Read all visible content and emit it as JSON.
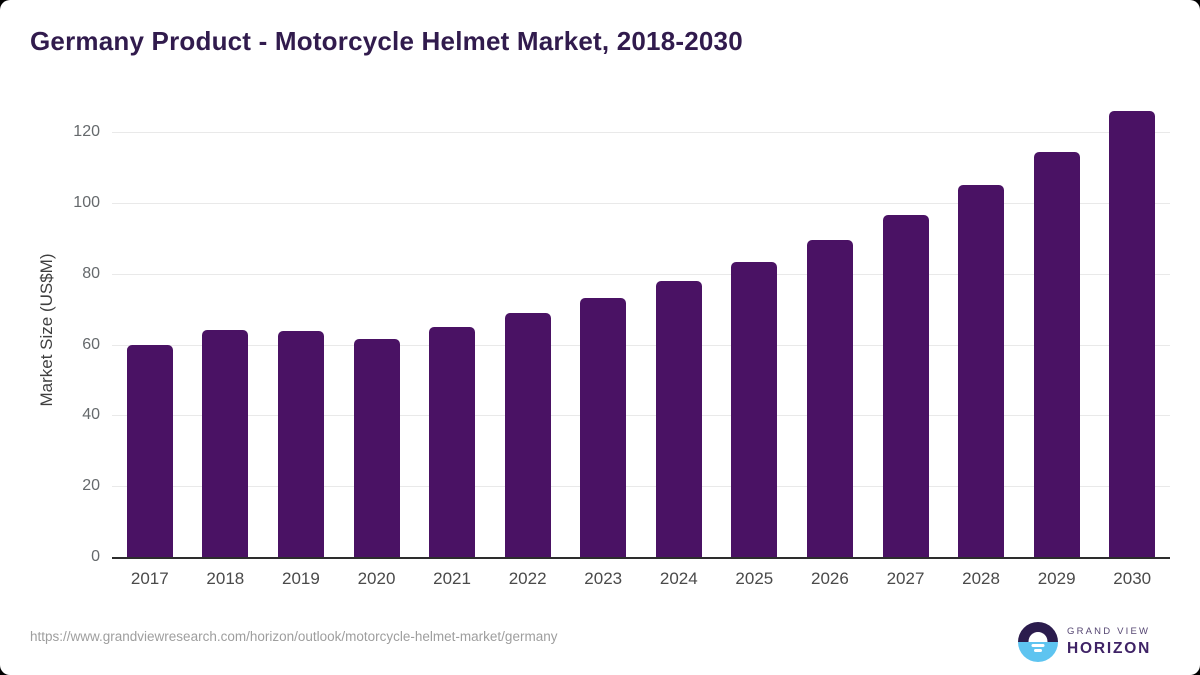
{
  "page": {
    "background_color": "#000000",
    "card_color": "#ffffff"
  },
  "header": {
    "title": "Germany Product - Motorcycle Helmet Market, 2018-2030",
    "title_color": "#311b4d"
  },
  "chart_data": {
    "type": "bar",
    "title": "Germany Product - Motorcycle Helmet Market, 2018-2030",
    "xlabel": "",
    "ylabel": "Market Size (US$M)",
    "categories": [
      "2017",
      "2018",
      "2019",
      "2020",
      "2021",
      "2022",
      "2023",
      "2024",
      "2025",
      "2026",
      "2027",
      "2028",
      "2029",
      "2030"
    ],
    "values": [
      60.0,
      64.0,
      63.7,
      61.5,
      65.0,
      68.8,
      73.0,
      78.0,
      83.4,
      89.6,
      96.7,
      104.9,
      114.4,
      125.8
    ],
    "yticks": [
      0,
      20,
      40,
      60,
      80,
      100,
      120
    ],
    "ylim": [
      0,
      128
    ],
    "grid": true,
    "legend_position": "none",
    "bar_color": "#4a1264",
    "gridline_color": "#e9e9e9",
    "axis_line_color": "#2d2d2d",
    "y_tick_color": "#65696c",
    "x_tick_color": "#4a4a4a"
  },
  "footer": {
    "source_url": "https://www.grandviewresearch.com/horizon/outlook/motorcycle-helmet-market/germany",
    "logo": {
      "icon": "horizon-sun-icon",
      "top_text": "GRAND VIEW",
      "bottom_text": "HORIZON",
      "icon_top_color": "#2b1c4d",
      "icon_bottom_color": "#5ec4f0"
    }
  }
}
